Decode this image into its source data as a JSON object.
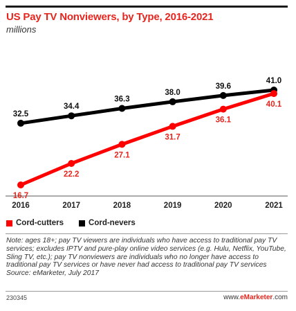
{
  "header": {
    "title": "US Pay TV Nonviewers, by Type, 2016-2021",
    "subtitle": "millions"
  },
  "colors": {
    "cord_cutters": "#ff0000",
    "cord_nevers": "#000000",
    "brand": "#e5261f"
  },
  "legend": {
    "cord_cutters": "Cord-cutters",
    "cord_nevers": "Cord-nevers"
  },
  "note": "Note: ages 18+; pay TV viewers are individuals who have access to traditional pay TV services; excludes IPTV and pure-play online video services (e.g. Hulu, Netflix, YouTube, Sling TV, etc.); pay TV nonviewers are individuals who no longer have access to traditional pay TV services or have never had access to traditional pay TV services",
  "source": "Source: eMarketer, July 2017",
  "footer": {
    "chart_id": "230345",
    "brand_prefix": "www.",
    "brand_name": "eMarketer",
    "brand_suffix": ".com"
  },
  "chart_data": {
    "type": "line",
    "title": "US Pay TV Nonviewers, by Type, 2016-2021",
    "subtitle": "millions",
    "categories": [
      "2016",
      "2017",
      "2018",
      "2019",
      "2020",
      "2021"
    ],
    "series": [
      {
        "name": "Cord-nevers",
        "values": [
          32.5,
          34.4,
          36.3,
          38.0,
          39.6,
          41.0
        ],
        "color": "#000000"
      },
      {
        "name": "Cord-cutters",
        "values": [
          16.7,
          22.2,
          27.1,
          31.7,
          36.1,
          40.1
        ],
        "color": "#ff0000"
      }
    ],
    "data_labels": true,
    "grid": false,
    "legend_position": "bottom-left"
  }
}
